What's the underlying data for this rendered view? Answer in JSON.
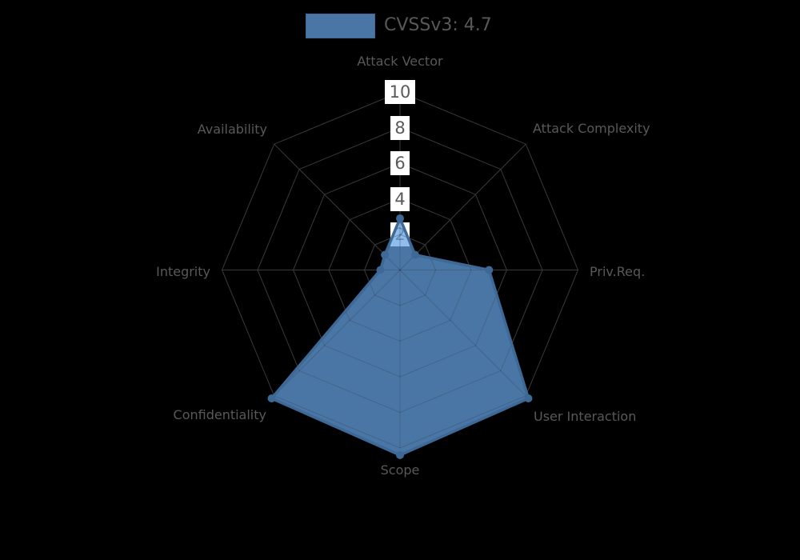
{
  "legend": {
    "label": "CVSSv3: 4.7"
  },
  "chart_data": {
    "type": "radar",
    "title": "CVSSv3: 4.7",
    "categories": [
      "Attack Vector",
      "Attack Complexity",
      "Priv.Req.",
      "User Interaction",
      "Scope",
      "Confidentiality",
      "Integrity",
      "Availability"
    ],
    "series": [
      {
        "name": "CVSSv3: 4.7",
        "values": [
          2.9,
          1.2,
          5.0,
          10.2,
          10.4,
          10.2,
          1.1,
          1.2
        ]
      }
    ],
    "r_ticks": [
      2,
      4,
      6,
      8,
      10
    ],
    "r_max": 10,
    "axis_start": "top",
    "direction": "clockwise",
    "grid": "spider-web",
    "legend_position": "top-center",
    "colors": {
      "background": "#000000",
      "fill": "#67a4e4",
      "fill_opacity": 0.72,
      "stroke": "#3e6896",
      "grid_line": "#3a3a3a",
      "grid_overlay": "rgba(12,22,38,0.30)",
      "label_text": "#595959",
      "tick_text": "#5a5a5a",
      "tick_box": "#ffffff",
      "legend_text": "#58585a"
    }
  }
}
